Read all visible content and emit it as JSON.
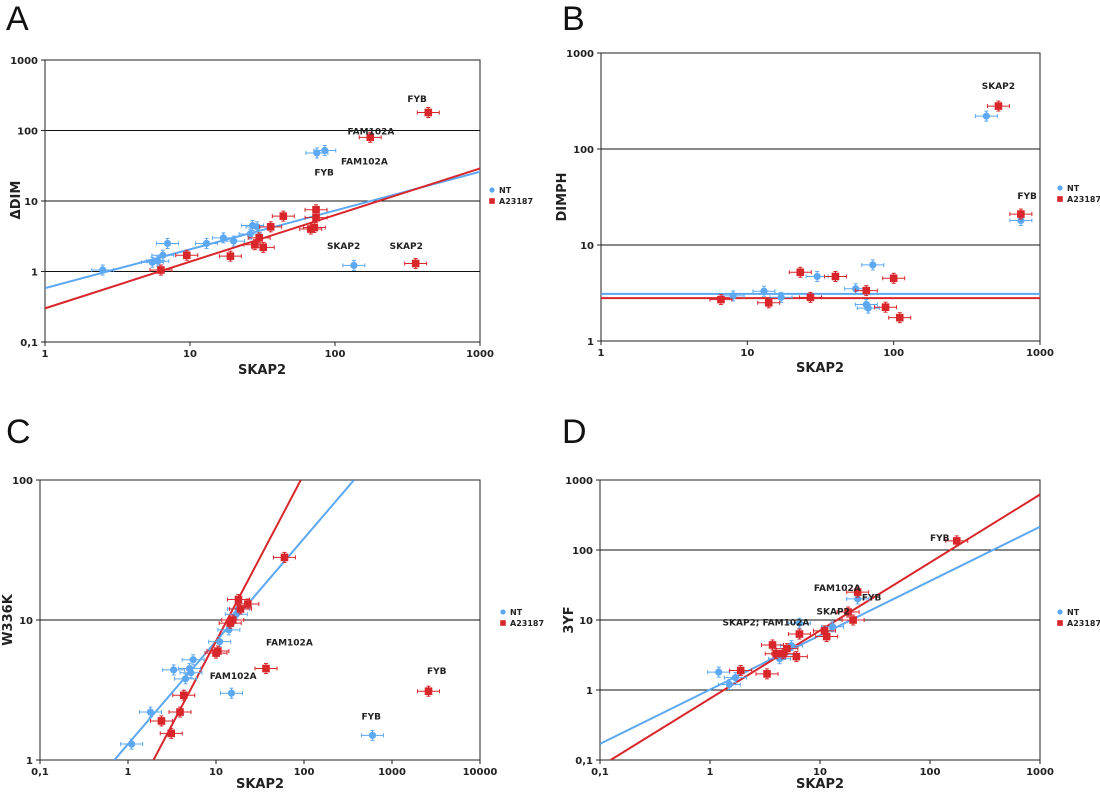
{
  "colors": {
    "nt": "#5ca8f2",
    "a23187": "#d8262b",
    "grid": "#111111",
    "frame": "#222222"
  },
  "chart_data": [
    {
      "panel": "A",
      "type": "scatter",
      "xscale": "log",
      "yscale": "log",
      "xlim": [
        1,
        1000
      ],
      "ylim": [
        0.1,
        1000
      ],
      "xticks": [
        "1",
        "10",
        "100",
        "1000"
      ],
      "xtick_values": [
        1,
        10,
        100,
        1000
      ],
      "yticks": [
        "0,1",
        "1",
        "10",
        "100",
        "1000"
      ],
      "ytick_values": [
        0.1,
        1,
        10,
        100,
        1000
      ],
      "gridlines": [
        1,
        10,
        100
      ],
      "xlabel": "SKAP2",
      "ylabel": "ΔDIM",
      "legend_position": "right",
      "series": [
        {
          "name": "NT",
          "marker": "circle",
          "color": "#5ca8f2",
          "points": [
            [
              2.5,
              1.05
            ],
            [
              5.5,
              1.35
            ],
            [
              6,
              1.4
            ],
            [
              6.5,
              1.7
            ],
            [
              7,
              2.5
            ],
            [
              13,
              2.5
            ],
            [
              17,
              3
            ],
            [
              20,
              2.7
            ],
            [
              26,
              3.4
            ],
            [
              27,
              4.5
            ],
            [
              29,
              4.3
            ],
            [
              75,
              48
            ],
            [
              85,
              52
            ],
            [
              135,
              1.22
            ]
          ],
          "fit": {
            "x": [
              1,
              1000
            ],
            "y": [
              0.58,
              26
            ]
          }
        },
        {
          "name": "A23187",
          "marker": "square",
          "color": "#d8262b",
          "points": [
            [
              6.3,
              1.05
            ],
            [
              9.5,
              1.7
            ],
            [
              19,
              1.65
            ],
            [
              28,
              2.4
            ],
            [
              30,
              3
            ],
            [
              32,
              2.2
            ],
            [
              36,
              4.3
            ],
            [
              44,
              6.1
            ],
            [
              68,
              4
            ],
            [
              72,
              4.2
            ],
            [
              74,
              5.8
            ],
            [
              74,
              7.5
            ],
            [
              175,
              80
            ],
            [
              440,
              180
            ],
            [
              360,
              1.3
            ]
          ],
          "fit": {
            "x": [
              1,
              1000
            ],
            "y": [
              0.3,
              29
            ]
          }
        }
      ],
      "annotations": [
        {
          "text": "FYB",
          "x": 430,
          "y": 255,
          "anchor": "end"
        },
        {
          "text": "FAM102A",
          "x": 122,
          "y": 88,
          "anchor": "start"
        },
        {
          "text": "FAM102A",
          "x": 110,
          "y": 33,
          "anchor": "start"
        },
        {
          "text": "FYB",
          "x": 72,
          "y": 23,
          "anchor": "start"
        },
        {
          "text": "SKAP2",
          "x": 88,
          "y": 2.1,
          "anchor": "start"
        },
        {
          "text": "SKAP2",
          "x": 238,
          "y": 2.1,
          "anchor": "start"
        }
      ]
    },
    {
      "panel": "B",
      "type": "scatter",
      "xscale": "log",
      "yscale": "log",
      "xlim": [
        1,
        1000
      ],
      "ylim": [
        1,
        1000
      ],
      "xticks": [
        "1",
        "10",
        "100",
        "1000"
      ],
      "xtick_values": [
        1,
        10,
        100,
        1000
      ],
      "yticks": [
        "1",
        "10",
        "100",
        "1000"
      ],
      "ytick_values": [
        1,
        10,
        100,
        1000
      ],
      "gridlines": [
        10,
        100
      ],
      "xlabel": "SKAP2",
      "ylabel": "DIMPH",
      "legend_position": "right",
      "series": [
        {
          "name": "NT",
          "marker": "circle",
          "color": "#5ca8f2",
          "points": [
            [
              8,
              2.95
            ],
            [
              13,
              3.3
            ],
            [
              17,
              2.85
            ],
            [
              30,
              4.7
            ],
            [
              55,
              3.5
            ],
            [
              65,
              2.4
            ],
            [
              67,
              2.2
            ],
            [
              72,
              6.2
            ],
            [
              430,
              220
            ],
            [
              740,
              18
            ]
          ],
          "fit": {
            "x": [
              1,
              1000
            ],
            "y": [
              3.1,
              3.1
            ]
          }
        },
        {
          "name": "A23187",
          "marker": "square",
          "color": "#d8262b",
          "points": [
            [
              6.6,
              2.7
            ],
            [
              14,
              2.5
            ],
            [
              23,
              5.2
            ],
            [
              27,
              2.85
            ],
            [
              40,
              4.7
            ],
            [
              65,
              3.35
            ],
            [
              88,
              2.25
            ],
            [
              100,
              4.5
            ],
            [
              110,
              1.75
            ],
            [
              520,
              280
            ],
            [
              740,
              21
            ]
          ],
          "fit": {
            "x": [
              1,
              1000
            ],
            "y": [
              2.8,
              2.8
            ]
          }
        }
      ],
      "annotations": [
        {
          "text": "SKAP2",
          "x": 400,
          "y": 420,
          "anchor": "start"
        },
        {
          "text": "FYB",
          "x": 700,
          "y": 30,
          "anchor": "start"
        }
      ]
    },
    {
      "panel": "C",
      "type": "scatter",
      "xscale": "log",
      "yscale": "log",
      "xlim": [
        0.1,
        10000
      ],
      "ylim": [
        1,
        100
      ],
      "xticks": [
        "0,1",
        "1",
        "10",
        "100",
        "1000",
        "10000"
      ],
      "xtick_values": [
        0.1,
        1,
        10,
        100,
        1000,
        10000
      ],
      "yticks": [
        "1",
        "10",
        "100"
      ],
      "ytick_values": [
        1,
        10,
        100
      ],
      "gridlines": [
        10
      ],
      "xlabel": "SKAP2",
      "ylabel": "W336K",
      "legend_position": "right",
      "series": [
        {
          "name": "NT",
          "marker": "circle",
          "color": "#5ca8f2",
          "points": [
            [
              1.1,
              1.3
            ],
            [
              1.8,
              2.2
            ],
            [
              3.3,
              4.4
            ],
            [
              4.5,
              3.8
            ],
            [
              5,
              4.5
            ],
            [
              5.2,
              4.2
            ],
            [
              5.5,
              5.2
            ],
            [
              11,
              7
            ],
            [
              14,
              8.5
            ],
            [
              15,
              3
            ],
            [
              17,
              11
            ],
            [
              18,
              12
            ],
            [
              600,
              1.5
            ]
          ],
          "fit": {
            "x": [
              0.7,
              370
            ],
            "y": [
              1,
              100
            ]
          }
        },
        {
          "name": "A23187",
          "marker": "square",
          "color": "#d8262b",
          "points": [
            [
              2.4,
              1.9
            ],
            [
              3.1,
              1.55
            ],
            [
              3.9,
              2.2
            ],
            [
              4.3,
              2.9
            ],
            [
              10,
              5.8
            ],
            [
              10.5,
              6
            ],
            [
              14.5,
              9.5
            ],
            [
              15.5,
              10
            ],
            [
              18,
              14
            ],
            [
              19,
              12
            ],
            [
              23,
              13
            ],
            [
              37,
              4.5
            ],
            [
              60,
              28
            ],
            [
              2600,
              3.1
            ]
          ],
          "fit": {
            "x": [
              1.95,
              92
            ],
            "y": [
              1,
              100
            ]
          }
        }
      ],
      "annotations": [
        {
          "text": "FAM102A",
          "x": 37,
          "y": 6.6,
          "anchor": "start"
        },
        {
          "text": "FAM102A",
          "x": 8.5,
          "y": 3.8,
          "anchor": "start"
        },
        {
          "text": "FYB",
          "x": 2500,
          "y": 4.1,
          "anchor": "start"
        },
        {
          "text": "FYB",
          "x": 450,
          "y": 1.95,
          "anchor": "start"
        }
      ]
    },
    {
      "panel": "D",
      "type": "scatter",
      "xscale": "log",
      "yscale": "log",
      "xlim": [
        0.1,
        1000
      ],
      "ylim": [
        0.1,
        1000
      ],
      "xticks": [
        "0,1",
        "1",
        "10",
        "100",
        "1000"
      ],
      "xtick_values": [
        0.1,
        1,
        10,
        100,
        1000
      ],
      "yticks": [
        "0,1",
        "1",
        "10",
        "100",
        "1000"
      ],
      "ytick_values": [
        0.1,
        1,
        10,
        100,
        1000
      ],
      "gridlines": [
        1,
        10,
        100
      ],
      "xlabel": "SKAP2",
      "ylabel": "3YF",
      "legend_position": "right",
      "series": [
        {
          "name": "NT",
          "marker": "circle",
          "color": "#5ca8f2",
          "points": [
            [
              1.2,
              1.8
            ],
            [
              1.5,
              1.2
            ],
            [
              1.7,
              1.5
            ],
            [
              4.3,
              2.8
            ],
            [
              4.7,
              3.2
            ],
            [
              5.5,
              4.3
            ],
            [
              6.5,
              9
            ],
            [
              13,
              8
            ],
            [
              22,
              20
            ]
          ],
          "fit": {
            "x": [
              0.1,
              1000
            ],
            "y": [
              0.17,
              215
            ]
          }
        },
        {
          "name": "A23187",
          "marker": "square",
          "color": "#d8262b",
          "points": [
            [
              1.9,
              1.9
            ],
            [
              3.3,
              1.7
            ],
            [
              3.7,
              4.4
            ],
            [
              4,
              3.3
            ],
            [
              4.6,
              3.3
            ],
            [
              5,
              3.9
            ],
            [
              6.1,
              3
            ],
            [
              6.5,
              6.3
            ],
            [
              11,
              7
            ],
            [
              11.5,
              5.8
            ],
            [
              18,
              13
            ],
            [
              20,
              10
            ],
            [
              22,
              25
            ],
            [
              175,
              135
            ]
          ],
          "fit": {
            "x": [
              0.125,
              1000
            ],
            "y": [
              0.1,
              620
            ]
          }
        }
      ],
      "annotations": [
        {
          "text": "FYB",
          "x": 100,
          "y": 135,
          "anchor": "start"
        },
        {
          "text": "FAM102A",
          "x": 8.8,
          "y": 26,
          "anchor": "start"
        },
        {
          "text": "FYB",
          "x": 24,
          "y": 19,
          "anchor": "start"
        },
        {
          "text": "SKAP2",
          "x": 9.3,
          "y": 12,
          "anchor": "start"
        },
        {
          "text": "SKAP2; FAM102A",
          "x": 1.3,
          "y": 8.3,
          "anchor": "start"
        }
      ]
    }
  ]
}
